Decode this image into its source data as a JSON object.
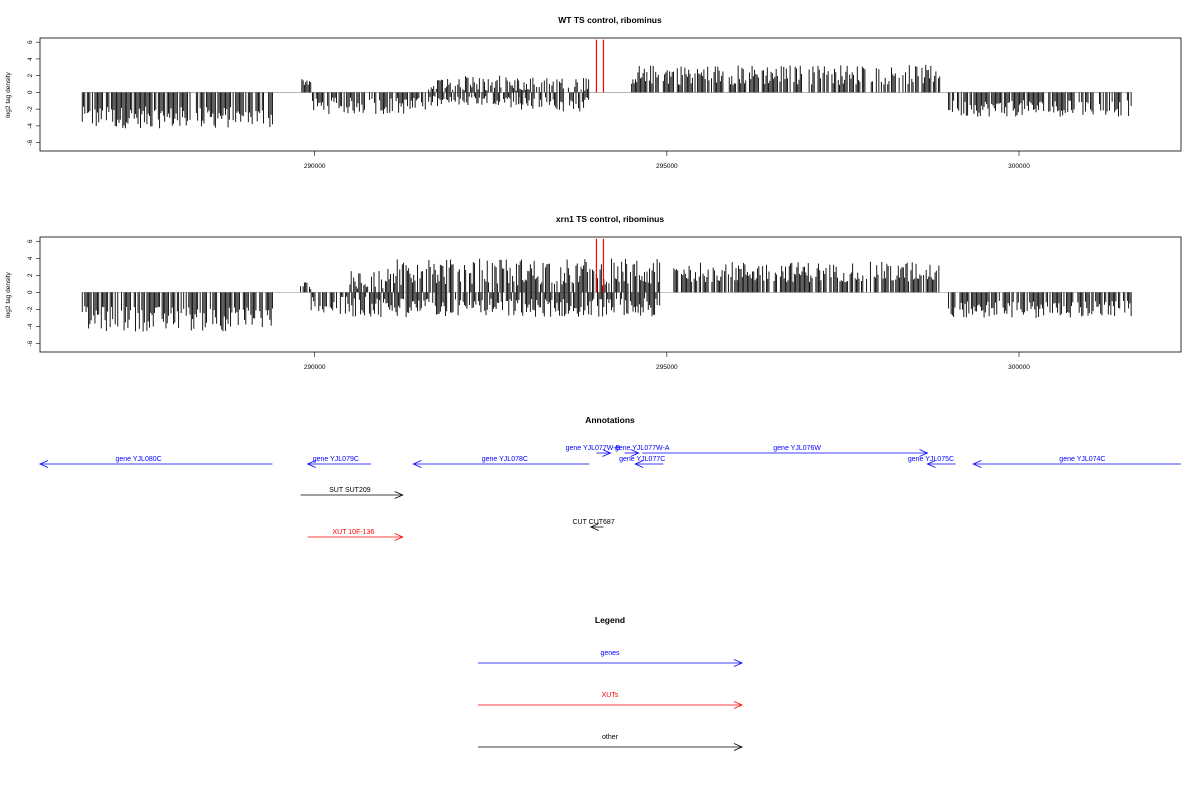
{
  "chart_data": [
    {
      "type": "bar",
      "title": "WT TS control, ribominus",
      "ylabel": "log2 tag density",
      "xlabel": "",
      "xlim": [
        286100,
        302300
      ],
      "ylim": [
        -7,
        6.5
      ],
      "yticks": [
        -6,
        -4,
        -2,
        0,
        2,
        4,
        6
      ],
      "xticks": [
        290000,
        295000,
        300000
      ],
      "grid": false,
      "highlight_x": [
        294000,
        294100
      ],
      "highlight_color": "#ff0000",
      "series": [
        {
          "color": "#000000",
          "profile": [
            {
              "start": 286700,
              "end": 289400,
              "mean": -3.0,
              "amp": 1.3
            },
            {
              "start": 289800,
              "end": 289950,
              "mean": 1.3,
              "amp": 0.5
            },
            {
              "start": 289950,
              "end": 291600,
              "mean": -1.6,
              "amp": 1.0
            },
            {
              "start": 291600,
              "end": 292900,
              "mean": 1.0,
              "amp": 1.0
            },
            {
              "start": 291600,
              "end": 292900,
              "mean": -1.1,
              "amp": 0.7
            },
            {
              "start": 292900,
              "end": 293900,
              "mean": 0.8,
              "amp": 1.1
            },
            {
              "start": 292900,
              "end": 293900,
              "mean": -1.4,
              "amp": 0.9
            },
            {
              "start": 294500,
              "end": 298900,
              "mean": 2.1,
              "amp": 1.2
            },
            {
              "start": 299000,
              "end": 301600,
              "mean": -1.9,
              "amp": 1.0
            }
          ]
        }
      ]
    },
    {
      "type": "bar",
      "title": "xrn1 TS control, ribominus",
      "ylabel": "log2 tag density",
      "xlabel": "",
      "xlim": [
        286100,
        302300
      ],
      "ylim": [
        -7,
        6.5
      ],
      "yticks": [
        -6,
        -4,
        -2,
        0,
        2,
        4,
        6
      ],
      "xticks": [
        290000,
        295000,
        300000
      ],
      "grid": false,
      "highlight_x": [
        294000,
        294100
      ],
      "highlight_color": "#ff0000",
      "series": [
        {
          "color": "#000000",
          "profile": [
            {
              "start": 286700,
              "end": 289400,
              "mean": -3.1,
              "amp": 1.5
            },
            {
              "start": 289800,
              "end": 289950,
              "mean": 0.8,
              "amp": 0.5
            },
            {
              "start": 289950,
              "end": 291100,
              "mean": -1.7,
              "amp": 1.2
            },
            {
              "start": 290500,
              "end": 291100,
              "mean": 1.6,
              "amp": 1.2
            },
            {
              "start": 291100,
              "end": 294900,
              "mean": 2.4,
              "amp": 1.6
            },
            {
              "start": 291100,
              "end": 294900,
              "mean": -1.8,
              "amp": 1.1
            },
            {
              "start": 295100,
              "end": 298900,
              "mean": 2.4,
              "amp": 1.2
            },
            {
              "start": 299000,
              "end": 301600,
              "mean": -2.0,
              "amp": 1.0
            }
          ]
        }
      ]
    }
  ],
  "annotations": {
    "title": "Annotations",
    "features": [
      {
        "label": "gene YJL080C",
        "start": 286100,
        "end": 289400,
        "strand": "-",
        "color": "#0000ff",
        "track": 1,
        "label_at": 287500
      },
      {
        "label": "gene YJL079C",
        "start": 289900,
        "end": 290800,
        "strand": "-",
        "color": "#0000ff",
        "track": 1,
        "label_at": 290300
      },
      {
        "label": "gene YJL078C",
        "start": 291400,
        "end": 293900,
        "strand": "-",
        "color": "#0000ff",
        "track": 1,
        "label_at": 292700
      },
      {
        "label": "gene YJL077W-B",
        "start": 294000,
        "end": 294200,
        "strand": "+",
        "color": "#0000ff",
        "track": 0,
        "label_at": 293950
      },
      {
        "label": "gene YJL077W-A",
        "start": 294400,
        "end": 294600,
        "strand": "+",
        "color": "#0000ff",
        "track": 0,
        "label_at": 294650
      },
      {
        "label": "gene YJL077C",
        "start": 294550,
        "end": 294950,
        "strand": "-",
        "color": "#0000ff",
        "track": 1,
        "label_at": 294650
      },
      {
        "label": "gene YJL076W",
        "start": 294650,
        "end": 298700,
        "strand": "+",
        "color": "#0000ff",
        "track": 0,
        "label_at": 296850
      },
      {
        "label": "gene YJL075C",
        "start": 298700,
        "end": 299100,
        "strand": "-",
        "color": "#0000ff",
        "track": 1,
        "label_at": 298750
      },
      {
        "label": "gene YJL074C",
        "start": 299350,
        "end": 302300,
        "strand": "-",
        "color": "#0000ff",
        "track": 1,
        "label_at": 300900
      },
      {
        "label": "SUT SUT209",
        "start": 289800,
        "end": 291250,
        "strand": "+",
        "color": "#000000",
        "track": 2,
        "label_at": 290500
      },
      {
        "label": "CUT CUT687",
        "start": 293920,
        "end": 294100,
        "strand": "-",
        "color": "#000000",
        "track": 3,
        "label_at": 293960
      },
      {
        "label": "XUT 10F-136",
        "start": 289900,
        "end": 291250,
        "strand": "+",
        "color": "#ff0000",
        "track": 4,
        "label_at": 290550
      }
    ]
  },
  "legend": {
    "title": "Legend",
    "items": [
      {
        "label": "genes",
        "color": "#0000ff"
      },
      {
        "label": "XUTs",
        "color": "#ff0000"
      },
      {
        "label": "other",
        "color": "#000000"
      }
    ]
  }
}
